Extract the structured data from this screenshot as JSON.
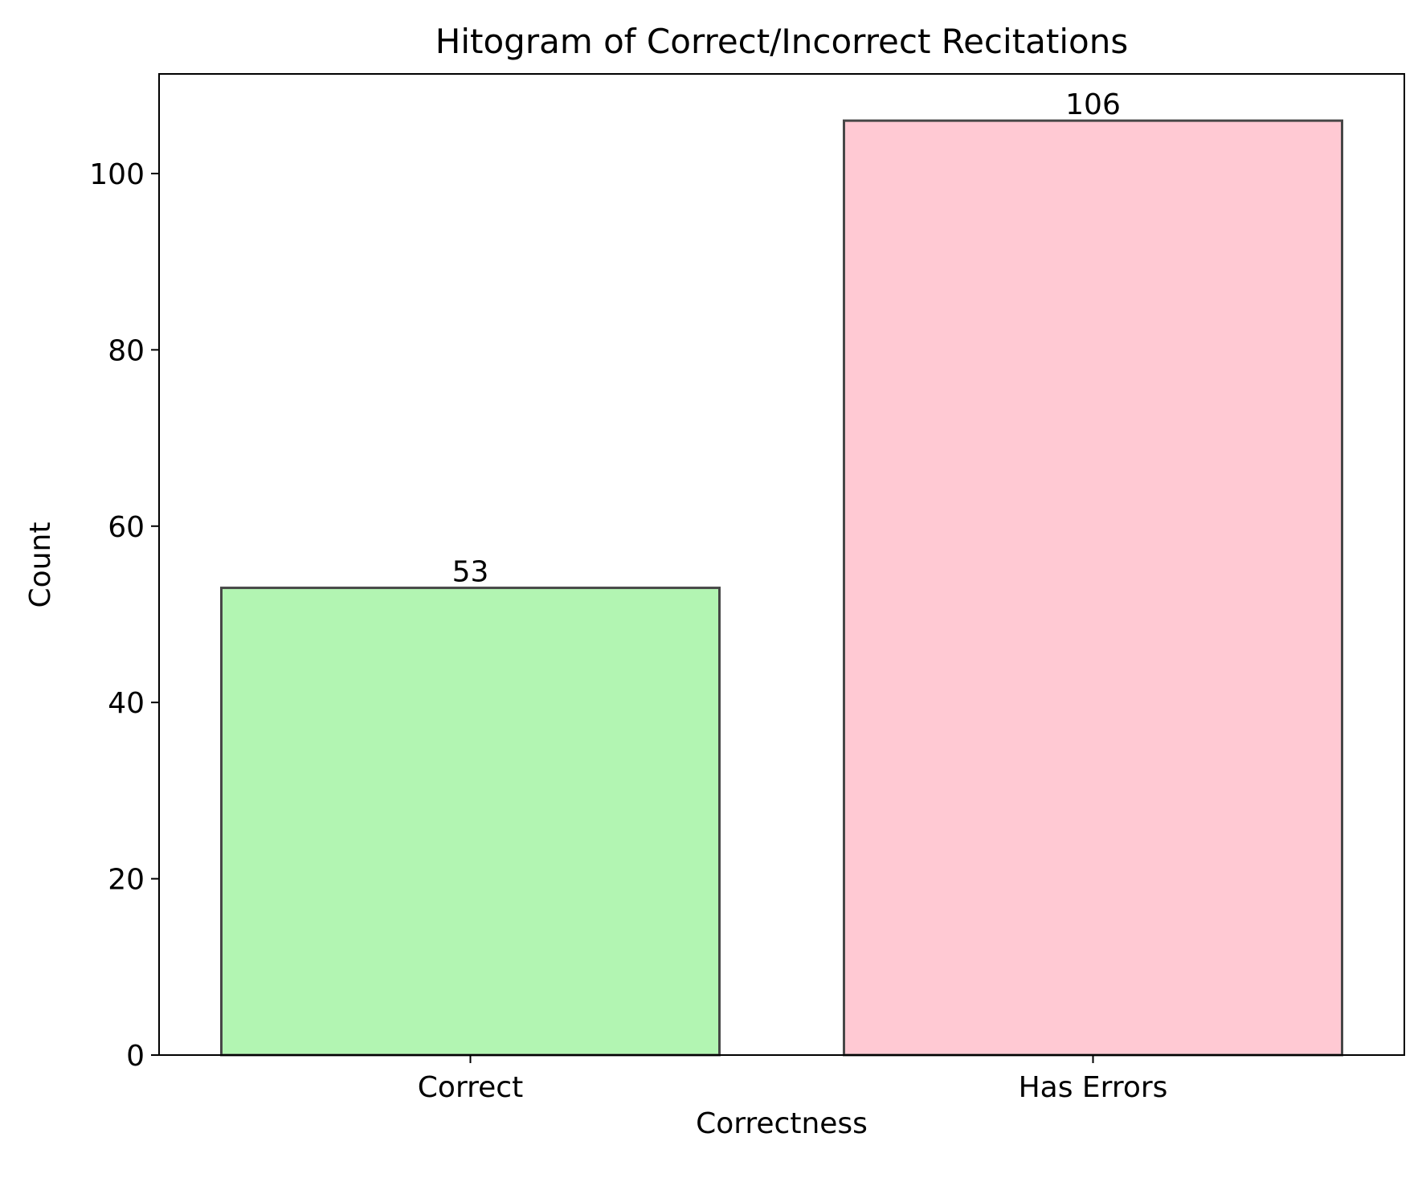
{
  "chart_data": {
    "type": "bar",
    "title": "Hitogram of Correct/Incorrect Recitations",
    "xlabel": "Correctness",
    "ylabel": "Count",
    "categories": [
      "Correct",
      "Has Errors"
    ],
    "values": [
      53,
      106
    ],
    "value_labels": [
      "53",
      "106"
    ],
    "bar_colors": [
      "#b2f5b2",
      "#ffc9d3"
    ],
    "bar_edge_color": "#474747",
    "ylim": [
      0,
      111.3
    ],
    "yticks": [
      0,
      20,
      40,
      60,
      80,
      100
    ],
    "ytick_labels": [
      "0",
      "20",
      "40",
      "60",
      "80",
      "100"
    ],
    "grid": false,
    "legend": false
  }
}
